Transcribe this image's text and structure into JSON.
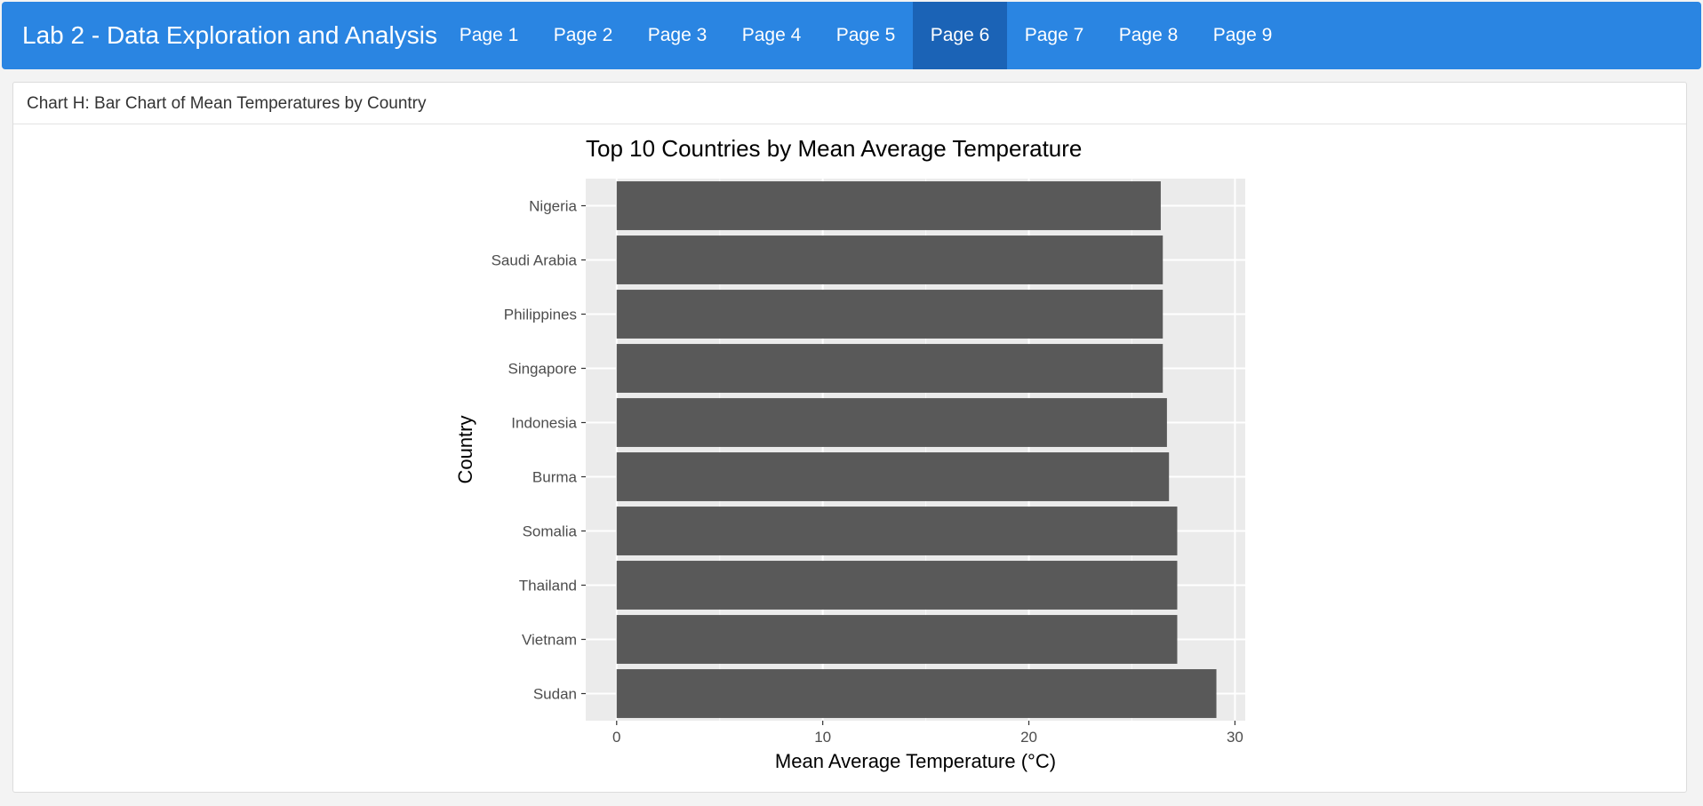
{
  "app": {
    "title": "Lab 2 - Data Exploration and Analysis",
    "accent_color": "#2a85e2",
    "active_tab_color": "#1b63b6"
  },
  "tabs": [
    {
      "label": "Page 1",
      "active": false
    },
    {
      "label": "Page 2",
      "active": false
    },
    {
      "label": "Page 3",
      "active": false
    },
    {
      "label": "Page 4",
      "active": false
    },
    {
      "label": "Page 5",
      "active": false
    },
    {
      "label": "Page 6",
      "active": true
    },
    {
      "label": "Page 7",
      "active": false
    },
    {
      "label": "Page 8",
      "active": false
    },
    {
      "label": "Page 9",
      "active": false
    }
  ],
  "card": {
    "title": "Chart H: Bar Chart of Mean Temperatures by Country"
  },
  "chart_data": {
    "type": "bar",
    "orientation": "horizontal",
    "title": "Top 10 Countries by Mean Average Temperature",
    "xlabel": "Mean Average Temperature (°C)",
    "ylabel": "Country",
    "categories": [
      "Nigeria",
      "Saudi Arabia",
      "Philippines",
      "Singapore",
      "Indonesia",
      "Burma",
      "Somalia",
      "Thailand",
      "Vietnam",
      "Sudan"
    ],
    "values": [
      26.4,
      26.5,
      26.5,
      26.5,
      26.7,
      26.8,
      27.2,
      27.2,
      27.2,
      29.1
    ],
    "xlim": [
      -1.5,
      30.5
    ],
    "xticks": [
      0,
      10,
      20,
      30
    ],
    "grid": true,
    "bar_color": "#595959",
    "panel_color": "#ebebeb"
  }
}
